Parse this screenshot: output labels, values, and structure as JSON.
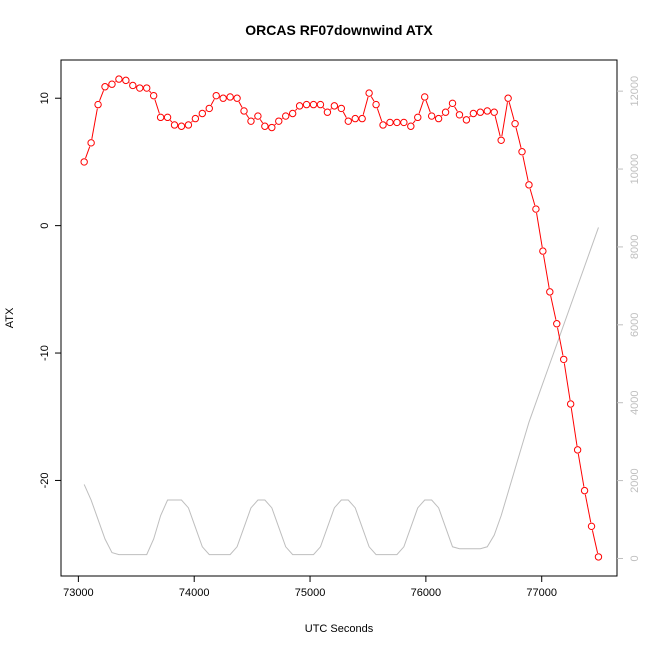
{
  "chart_data": {
    "type": "line",
    "title": "ORCAS RF07downwind ATX",
    "xlabel": "UTC Seconds",
    "ylabel": "ATX",
    "xlim": [
      72850,
      77650
    ],
    "ylim": [
      -27.5,
      13
    ],
    "y2lim": [
      -450,
      12800
    ],
    "x_ticks": [
      73000,
      74000,
      75000,
      76000,
      77000
    ],
    "y_ticks": [
      10,
      0,
      -10,
      -20
    ],
    "y2_ticks": [
      0,
      2000,
      4000,
      6000,
      8000,
      10000,
      12000
    ],
    "colors": {
      "atx": "#ff0000",
      "altitude": "#bebebe"
    },
    "series": [
      {
        "marker": "open-circle",
        "x": [
          73050,
          73110,
          73170,
          73230,
          73290,
          73350,
          73410,
          73470,
          73530,
          73590,
          73650,
          73710,
          73770,
          73830,
          73890,
          73950,
          74010,
          74070,
          74130,
          74190,
          74250,
          74310,
          74370,
          74430,
          74490,
          74550,
          74610,
          74670,
          74730,
          74790,
          74850,
          74910,
          74970,
          75030,
          75090,
          75150,
          75210,
          75270,
          75330,
          75390,
          75450,
          75510,
          75570,
          75630,
          75690,
          75750,
          75810,
          75870,
          75930,
          75990,
          76050,
          76110,
          76170,
          76230,
          76290,
          76350,
          76410,
          76470,
          76530,
          76590,
          76650,
          76710,
          76770,
          76830,
          76890,
          76950,
          77010,
          77070,
          77130,
          77190,
          77250,
          77310,
          77370,
          77430,
          77490
        ],
        "y": [
          5.0,
          6.5,
          9.5,
          10.9,
          11.1,
          11.5,
          11.4,
          11.0,
          10.8,
          10.8,
          10.2,
          8.5,
          8.5,
          7.9,
          7.8,
          7.9,
          8.4,
          8.8,
          9.2,
          10.2,
          10.0,
          10.1,
          10.0,
          9.0,
          8.2,
          8.6,
          7.8,
          7.7,
          8.2,
          8.6,
          8.8,
          9.4,
          9.5,
          9.5,
          9.5,
          8.9,
          9.4,
          9.2,
          8.2,
          8.4,
          8.4,
          10.4,
          9.5,
          7.9,
          8.1,
          8.1,
          8.1,
          7.8,
          8.5,
          10.1,
          8.6,
          8.4,
          8.9,
          9.6,
          8.7,
          8.3,
          8.8,
          8.9,
          9.0,
          8.9,
          6.7,
          10.0,
          8.0,
          5.8,
          3.2,
          1.3,
          -2.0,
          -5.2,
          -7.7,
          -10.5,
          -14.0,
          -17.6,
          -20.8,
          -23.6,
          -26.0
        ]
      },
      {
        "axis": "right",
        "x": [
          73050,
          73110,
          73170,
          73230,
          73290,
          73350,
          73410,
          73470,
          73530,
          73590,
          73650,
          73710,
          73770,
          73830,
          73890,
          73950,
          74010,
          74070,
          74130,
          74190,
          74250,
          74310,
          74370,
          74430,
          74490,
          74550,
          74610,
          74670,
          74730,
          74790,
          74850,
          74910,
          74970,
          75030,
          75090,
          75150,
          75210,
          75270,
          75330,
          75390,
          75450,
          75510,
          75570,
          75630,
          75690,
          75750,
          75810,
          75870,
          75930,
          75990,
          76050,
          76110,
          76170,
          76230,
          76290,
          76350,
          76410,
          76470,
          76530,
          76590,
          76650,
          76710,
          76770,
          76830,
          76890,
          76950,
          77010,
          77070,
          77130,
          77190,
          77250,
          77310,
          77370,
          77430,
          77490
        ],
        "y": [
          1900,
          1500,
          1000,
          500,
          150,
          100,
          100,
          100,
          100,
          100,
          500,
          1100,
          1500,
          1500,
          1500,
          1300,
          800,
          300,
          100,
          100,
          100,
          100,
          300,
          800,
          1300,
          1500,
          1500,
          1300,
          800,
          300,
          100,
          100,
          100,
          100,
          300,
          800,
          1300,
          1500,
          1500,
          1300,
          800,
          300,
          100,
          100,
          100,
          100,
          300,
          800,
          1300,
          1500,
          1500,
          1300,
          800,
          300,
          250,
          250,
          250,
          250,
          300,
          600,
          1100,
          1700,
          2300,
          2900,
          3500,
          4000,
          4500,
          5000,
          5500,
          6000,
          6500,
          7000,
          7500,
          8000,
          8500
        ]
      }
    ]
  }
}
